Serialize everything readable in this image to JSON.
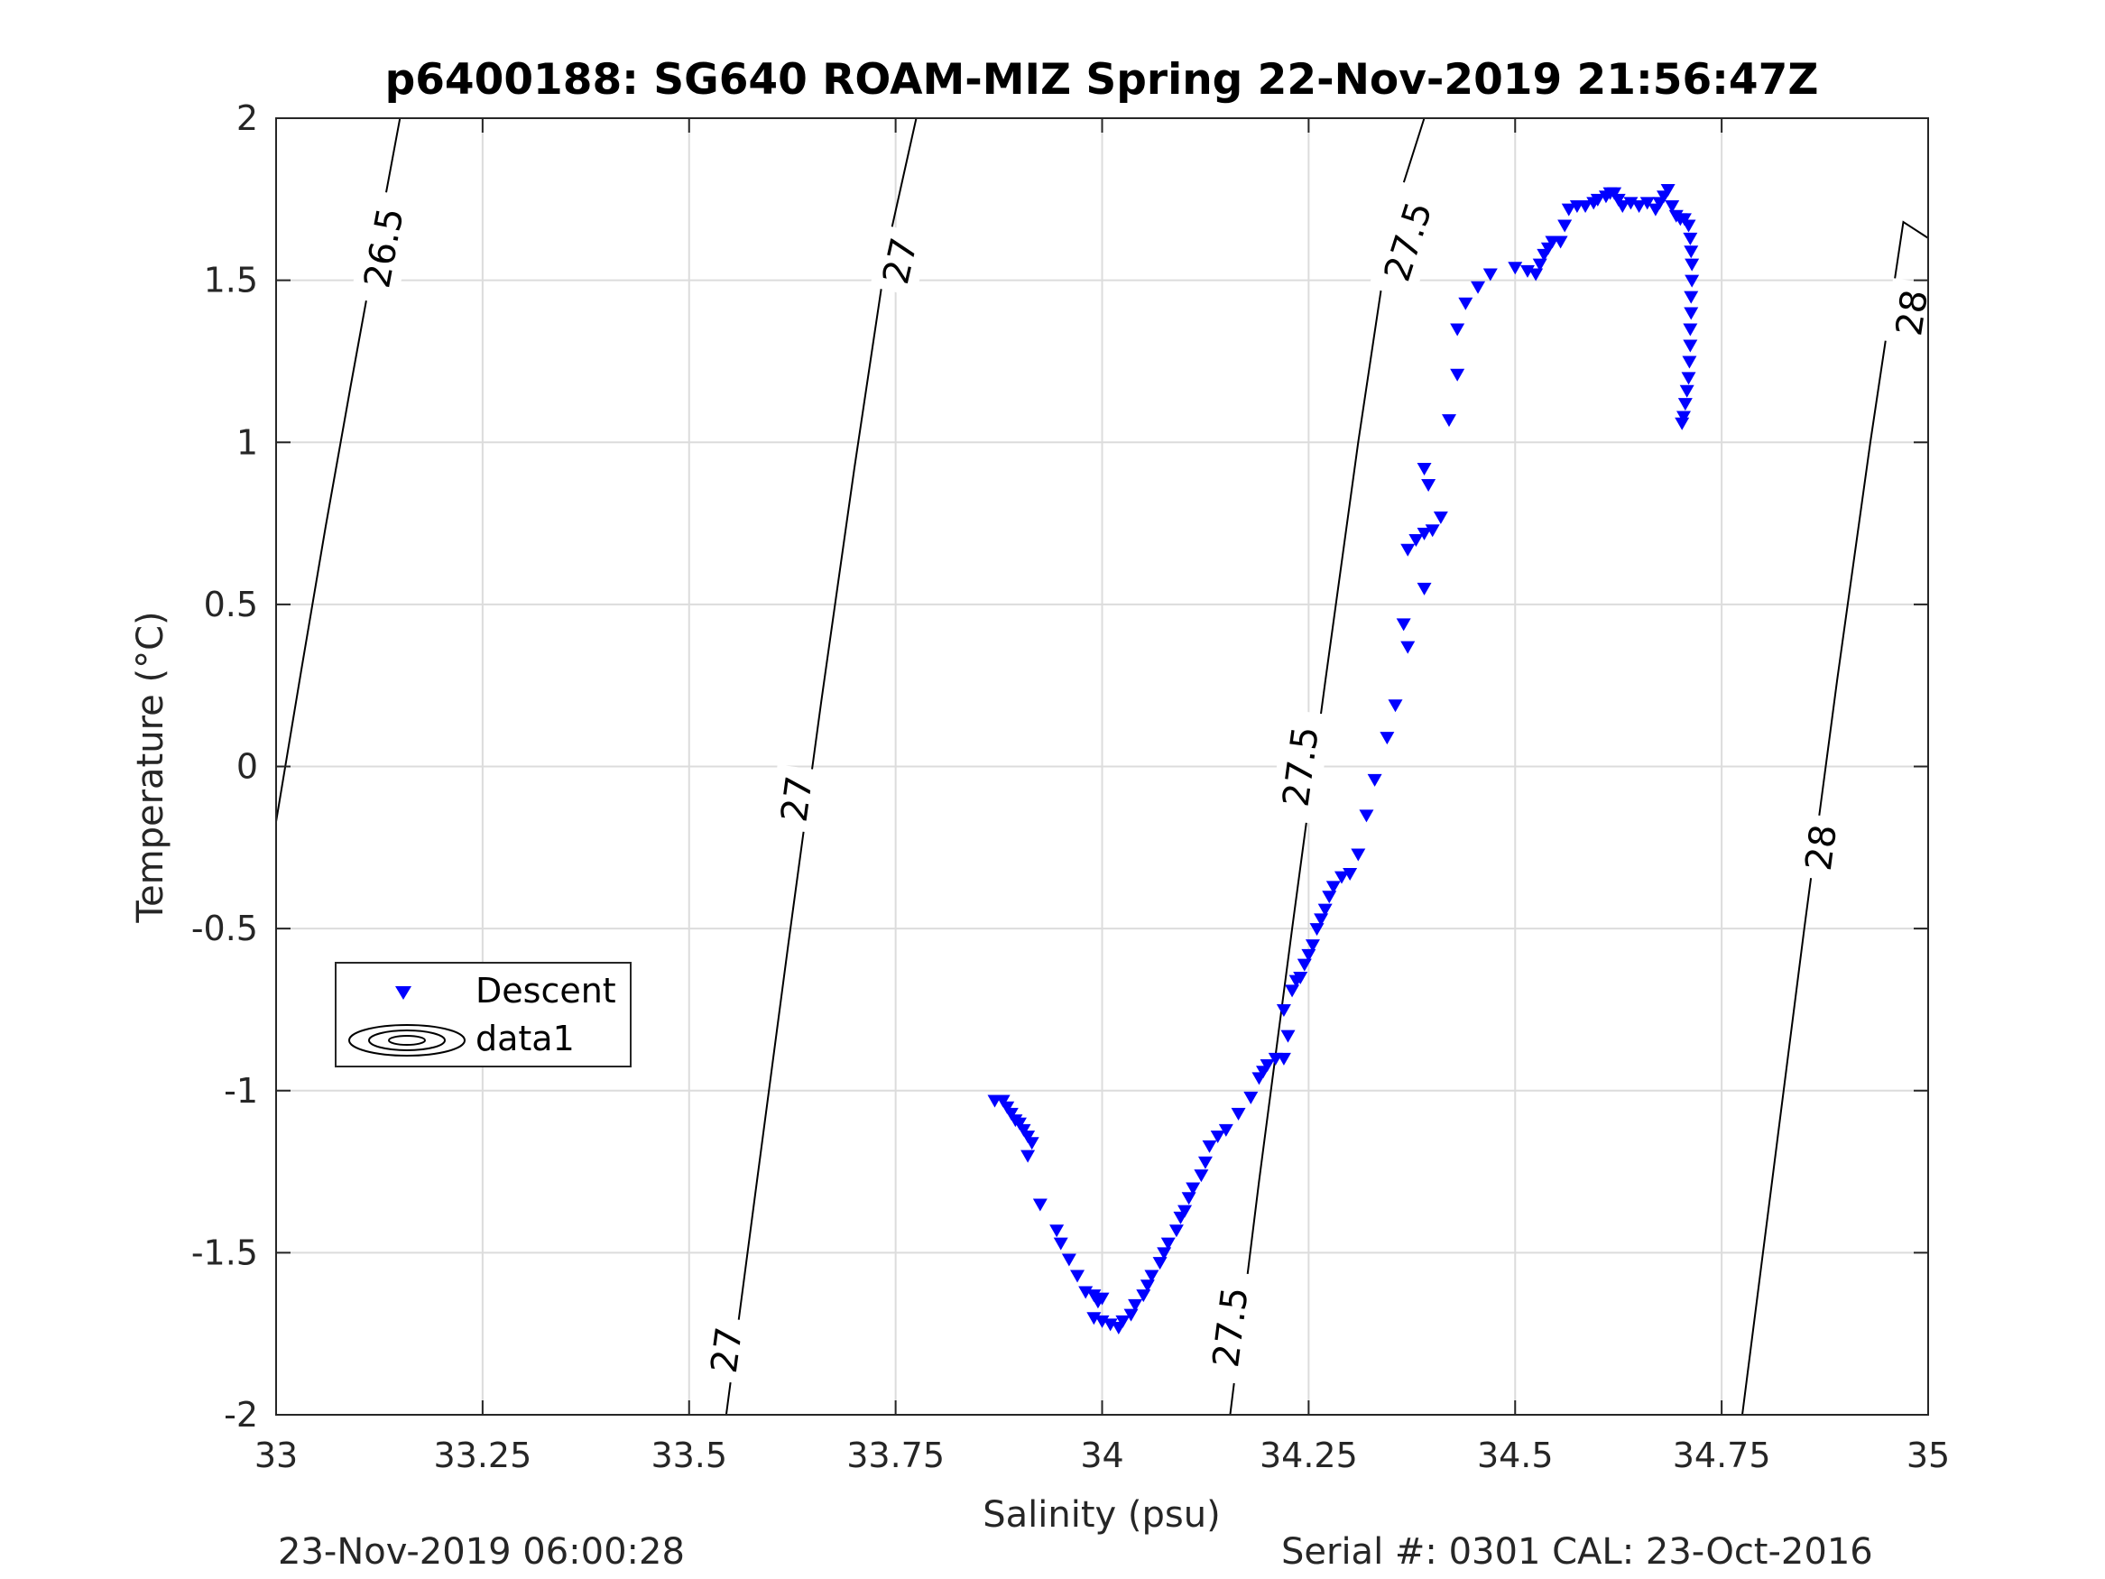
{
  "chart_data": {
    "type": "scatter",
    "title": "p6400188: SG640 ROAM-MIZ Spring 22-Nov-2019 21:56:47Z",
    "xlabel": "Salinity (psu)",
    "ylabel": "Temperature (°C)",
    "xlim": [
      33,
      35
    ],
    "ylim": [
      -2,
      2
    ],
    "x_ticks": [
      "33",
      "33.25",
      "33.5",
      "33.75",
      "34",
      "34.25",
      "34.5",
      "34.75",
      "35"
    ],
    "y_ticks": [
      "-2",
      "-1.5",
      "-1",
      "-0.5",
      "0",
      "0.5",
      "1",
      "1.5",
      "2"
    ],
    "grid": true,
    "legend": {
      "placement": "middle-left",
      "entries": [
        "Descent",
        "data1"
      ]
    },
    "series": [
      {
        "name": "Descent",
        "marker": "down-triangle",
        "color": "#0000ff",
        "points": [
          [
            33.87,
            -1.03
          ],
          [
            33.88,
            -1.03
          ],
          [
            33.885,
            -1.05
          ],
          [
            33.89,
            -1.07
          ],
          [
            33.895,
            -1.09
          ],
          [
            33.9,
            -1.1
          ],
          [
            33.905,
            -1.12
          ],
          [
            33.91,
            -1.14
          ],
          [
            33.915,
            -1.16
          ],
          [
            33.91,
            -1.2
          ],
          [
            33.925,
            -1.35
          ],
          [
            33.945,
            -1.43
          ],
          [
            33.95,
            -1.47
          ],
          [
            33.96,
            -1.52
          ],
          [
            33.97,
            -1.57
          ],
          [
            33.98,
            -1.62
          ],
          [
            33.99,
            -1.63
          ],
          [
            33.995,
            -1.65
          ],
          [
            34.0,
            -1.64
          ],
          [
            33.99,
            -1.7
          ],
          [
            34.0,
            -1.71
          ],
          [
            34.01,
            -1.72
          ],
          [
            34.02,
            -1.73
          ],
          [
            34.025,
            -1.71
          ],
          [
            34.035,
            -1.69
          ],
          [
            34.04,
            -1.66
          ],
          [
            34.05,
            -1.63
          ],
          [
            34.055,
            -1.6
          ],
          [
            34.06,
            -1.57
          ],
          [
            34.07,
            -1.53
          ],
          [
            34.075,
            -1.5
          ],
          [
            34.08,
            -1.47
          ],
          [
            34.09,
            -1.43
          ],
          [
            34.095,
            -1.39
          ],
          [
            34.1,
            -1.37
          ],
          [
            34.105,
            -1.33
          ],
          [
            34.11,
            -1.3
          ],
          [
            34.12,
            -1.26
          ],
          [
            34.125,
            -1.22
          ],
          [
            34.13,
            -1.17
          ],
          [
            34.14,
            -1.14
          ],
          [
            34.15,
            -1.12
          ],
          [
            34.165,
            -1.07
          ],
          [
            34.18,
            -1.02
          ],
          [
            34.19,
            -0.96
          ],
          [
            34.195,
            -0.94
          ],
          [
            34.2,
            -0.92
          ],
          [
            34.21,
            -0.9
          ],
          [
            34.22,
            -0.9
          ],
          [
            34.225,
            -0.83
          ],
          [
            34.22,
            -0.75
          ],
          [
            34.23,
            -0.69
          ],
          [
            34.235,
            -0.66
          ],
          [
            34.24,
            -0.65
          ],
          [
            34.245,
            -0.61
          ],
          [
            34.25,
            -0.58
          ],
          [
            34.255,
            -0.55
          ],
          [
            34.26,
            -0.5
          ],
          [
            34.265,
            -0.47
          ],
          [
            34.27,
            -0.44
          ],
          [
            34.275,
            -0.4
          ],
          [
            34.28,
            -0.37
          ],
          [
            34.29,
            -0.34
          ],
          [
            34.3,
            -0.33
          ],
          [
            34.31,
            -0.27
          ],
          [
            34.32,
            -0.15
          ],
          [
            34.33,
            -0.04
          ],
          [
            34.345,
            0.09
          ],
          [
            34.355,
            0.19
          ],
          [
            34.37,
            0.37
          ],
          [
            34.365,
            0.44
          ],
          [
            34.39,
            0.55
          ],
          [
            34.37,
            0.67
          ],
          [
            34.38,
            0.7
          ],
          [
            34.39,
            0.72
          ],
          [
            34.4,
            0.73
          ],
          [
            34.41,
            0.77
          ],
          [
            34.395,
            0.87
          ],
          [
            34.39,
            0.92
          ],
          [
            34.42,
            1.07
          ],
          [
            34.43,
            1.21
          ],
          [
            34.43,
            1.35
          ],
          [
            34.44,
            1.43
          ],
          [
            34.455,
            1.48
          ],
          [
            34.47,
            1.52
          ],
          [
            34.5,
            1.54
          ],
          [
            34.515,
            1.53
          ],
          [
            34.525,
            1.52
          ],
          [
            34.53,
            1.55
          ],
          [
            34.535,
            1.58
          ],
          [
            34.54,
            1.6
          ],
          [
            34.545,
            1.62
          ],
          [
            34.555,
            1.62
          ],
          [
            34.56,
            1.67
          ],
          [
            34.565,
            1.72
          ],
          [
            34.575,
            1.73
          ],
          [
            34.585,
            1.73
          ],
          [
            34.595,
            1.74
          ],
          [
            34.6,
            1.75
          ],
          [
            34.61,
            1.76
          ],
          [
            34.615,
            1.77
          ],
          [
            34.62,
            1.77
          ],
          [
            34.625,
            1.75
          ],
          [
            34.63,
            1.73
          ],
          [
            34.64,
            1.74
          ],
          [
            34.65,
            1.73
          ],
          [
            34.66,
            1.74
          ],
          [
            34.67,
            1.72
          ],
          [
            34.675,
            1.74
          ],
          [
            34.68,
            1.76
          ],
          [
            34.685,
            1.78
          ],
          [
            34.69,
            1.73
          ],
          [
            34.695,
            1.7
          ],
          [
            34.7,
            1.69
          ],
          [
            34.705,
            1.69
          ],
          [
            34.71,
            1.67
          ],
          [
            34.712,
            1.63
          ],
          [
            34.713,
            1.59
          ],
          [
            34.714,
            1.55
          ],
          [
            34.714,
            1.5
          ],
          [
            34.713,
            1.45
          ],
          [
            34.713,
            1.4
          ],
          [
            34.712,
            1.35
          ],
          [
            34.712,
            1.3
          ],
          [
            34.711,
            1.25
          ],
          [
            34.71,
            1.2
          ],
          [
            34.708,
            1.16
          ],
          [
            34.706,
            1.12
          ],
          [
            34.704,
            1.08
          ],
          [
            34.702,
            1.06
          ]
        ]
      },
      {
        "name": "data1",
        "marker": "contour",
        "color": "#000000",
        "isopycnals": [
          {
            "level": "26.5",
            "line": [
              [
                33.0,
                -0.17
              ],
              [
                33.03,
                0.29
              ],
              [
                33.06,
                0.74
              ],
              [
                33.09,
                1.17
              ],
              [
                33.12,
                1.59
              ],
              [
                33.15,
                2.0
              ]
            ],
            "labels": [
              [
                33.13,
                1.6
              ]
            ]
          },
          {
            "level": "27",
            "line": [
              [
                33.545,
                -2.0
              ],
              [
                33.58,
                -1.32
              ],
              [
                33.62,
                -0.55
              ],
              [
                33.66,
                0.2
              ],
              [
                33.7,
                0.92
              ],
              [
                33.74,
                1.6
              ],
              [
                33.775,
                2.0
              ]
            ],
            "labels": [
              [
                33.545,
                -1.8
              ],
              [
                33.63,
                -0.1
              ],
              [
                33.755,
                1.56
              ]
            ]
          },
          {
            "level": "27.5",
            "line": [
              [
                34.155,
                -2.0
              ],
              [
                34.19,
                -1.28
              ],
              [
                34.23,
                -0.5
              ],
              [
                34.27,
                0.26
              ],
              [
                34.31,
                1.0
              ],
              [
                34.35,
                1.68
              ],
              [
                34.39,
                2.0
              ]
            ],
            "labels": [
              [
                34.155,
                -1.73
              ],
              [
                34.24,
                0.0
              ],
              [
                34.37,
                1.62
              ]
            ]
          },
          {
            "level": "28",
            "line": [
              [
                34.775,
                -2.0
              ],
              [
                34.81,
                -1.3
              ],
              [
                34.85,
                -0.5
              ],
              [
                34.89,
                0.27
              ],
              [
                34.93,
                1.0
              ],
              [
                34.97,
                1.68
              ],
              [
                35.0,
                1.63
              ]
            ],
            "labels": [
              [
                34.87,
                -0.25
              ],
              [
                34.98,
                1.4
              ]
            ]
          }
        ]
      }
    ]
  },
  "footer": {
    "timestamp": "23-Nov-2019 06:00:28",
    "serial": "Serial #: 0301  CAL: 23-Oct-2016"
  }
}
